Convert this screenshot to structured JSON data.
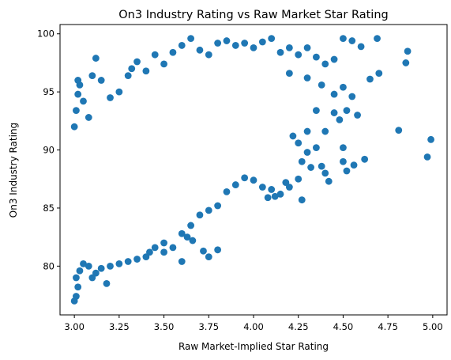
{
  "chart_data": {
    "type": "scatter",
    "title": "On3 Industry Rating vs Raw Market Star Rating",
    "xlabel": "Raw Market-Implied Star Rating",
    "ylabel": "On3 Industry Rating",
    "xlim": [
      2.92,
      5.08
    ],
    "ylim": [
      75.8,
      100.8
    ],
    "xticks": [
      3.0,
      3.25,
      3.5,
      3.75,
      4.0,
      4.25,
      4.5,
      4.75,
      5.0
    ],
    "xtick_labels": [
      "3.00",
      "3.25",
      "3.50",
      "3.75",
      "4.00",
      "4.25",
      "4.50",
      "4.75",
      "5.00"
    ],
    "yticks": [
      80,
      85,
      90,
      95,
      100
    ],
    "ytick_labels": [
      "80",
      "85",
      "90",
      "95",
      "100"
    ],
    "grid": false,
    "marker_color": "#1f77b4",
    "points": [
      [
        3.0,
        77.0
      ],
      [
        3.01,
        77.4
      ],
      [
        3.02,
        78.2
      ],
      [
        3.01,
        79.0
      ],
      [
        3.03,
        79.6
      ],
      [
        3.05,
        80.2
      ],
      [
        3.08,
        80.0
      ],
      [
        3.12,
        79.4
      ],
      [
        3.18,
        78.5
      ],
      [
        3.0,
        92.0
      ],
      [
        3.01,
        93.4
      ],
      [
        3.02,
        94.8
      ],
      [
        3.03,
        95.6
      ],
      [
        3.05,
        94.2
      ],
      [
        3.08,
        92.8
      ],
      [
        3.02,
        96.0
      ],
      [
        3.1,
        96.4
      ],
      [
        3.12,
        97.9
      ],
      [
        3.15,
        96.0
      ],
      [
        3.2,
        94.5
      ],
      [
        3.25,
        95.0
      ],
      [
        3.3,
        96.4
      ],
      [
        3.32,
        97.0
      ],
      [
        3.35,
        97.6
      ],
      [
        3.4,
        96.8
      ],
      [
        3.45,
        98.2
      ],
      [
        3.5,
        97.4
      ],
      [
        3.55,
        98.4
      ],
      [
        3.6,
        99.0
      ],
      [
        3.65,
        99.6
      ],
      [
        3.7,
        98.6
      ],
      [
        3.75,
        98.2
      ],
      [
        3.8,
        99.2
      ],
      [
        3.85,
        99.4
      ],
      [
        3.9,
        99.0
      ],
      [
        3.95,
        99.2
      ],
      [
        4.0,
        98.8
      ],
      [
        4.05,
        99.3
      ],
      [
        4.1,
        99.6
      ],
      [
        4.15,
        98.4
      ],
      [
        4.2,
        98.8
      ],
      [
        4.25,
        98.2
      ],
      [
        4.3,
        98.8
      ],
      [
        4.35,
        98.0
      ],
      [
        4.4,
        97.4
      ],
      [
        4.45,
        97.8
      ],
      [
        4.5,
        99.6
      ],
      [
        4.55,
        99.4
      ],
      [
        4.6,
        98.9
      ],
      [
        4.69,
        99.6
      ],
      [
        4.2,
        96.6
      ],
      [
        4.3,
        96.2
      ],
      [
        4.38,
        95.6
      ],
      [
        4.45,
        94.8
      ],
      [
        4.5,
        95.4
      ],
      [
        4.55,
        94.6
      ],
      [
        4.65,
        96.1
      ],
      [
        4.7,
        96.6
      ],
      [
        4.52,
        93.4
      ],
      [
        4.58,
        93.0
      ],
      [
        4.45,
        93.2
      ],
      [
        4.35,
        93.4
      ],
      [
        4.48,
        92.6
      ],
      [
        4.4,
        91.6
      ],
      [
        4.3,
        91.6
      ],
      [
        4.22,
        91.2
      ],
      [
        4.35,
        90.2
      ],
      [
        4.25,
        90.6
      ],
      [
        4.3,
        89.8
      ],
      [
        4.27,
        89.0
      ],
      [
        4.32,
        88.5
      ],
      [
        4.38,
        88.6
      ],
      [
        4.4,
        88.0
      ],
      [
        4.42,
        87.3
      ],
      [
        4.5,
        89.0
      ],
      [
        4.52,
        88.2
      ],
      [
        4.56,
        88.7
      ],
      [
        4.62,
        89.2
      ],
      [
        4.5,
        90.2
      ],
      [
        4.25,
        87.5
      ],
      [
        4.18,
        87.2
      ],
      [
        4.27,
        85.7
      ],
      [
        4.1,
        86.6
      ],
      [
        4.05,
        86.8
      ],
      [
        4.0,
        87.4
      ],
      [
        3.95,
        87.6
      ],
      [
        3.9,
        87.0
      ],
      [
        3.85,
        86.4
      ],
      [
        3.8,
        85.2
      ],
      [
        3.75,
        84.8
      ],
      [
        3.7,
        84.4
      ],
      [
        3.65,
        83.5
      ],
      [
        3.6,
        82.8
      ],
      [
        3.55,
        81.6
      ],
      [
        3.5,
        82.0
      ],
      [
        3.45,
        81.6
      ],
      [
        3.4,
        80.8
      ],
      [
        3.35,
        80.6
      ],
      [
        3.3,
        80.4
      ],
      [
        3.25,
        80.2
      ],
      [
        3.2,
        80.0
      ],
      [
        3.15,
        79.8
      ],
      [
        3.1,
        79.0
      ],
      [
        3.63,
        82.5
      ],
      [
        3.66,
        82.2
      ],
      [
        3.72,
        81.3
      ],
      [
        3.75,
        80.8
      ],
      [
        3.8,
        81.4
      ],
      [
        3.6,
        80.4
      ],
      [
        3.5,
        81.2
      ],
      [
        3.42,
        81.2
      ],
      [
        4.81,
        91.7
      ],
      [
        4.97,
        89.4
      ],
      [
        4.99,
        90.9
      ],
      [
        4.86,
        98.5
      ],
      [
        4.85,
        97.5
      ],
      [
        4.08,
        85.9
      ],
      [
        4.12,
        86.0
      ],
      [
        4.15,
        86.2
      ],
      [
        4.2,
        86.8
      ]
    ]
  }
}
